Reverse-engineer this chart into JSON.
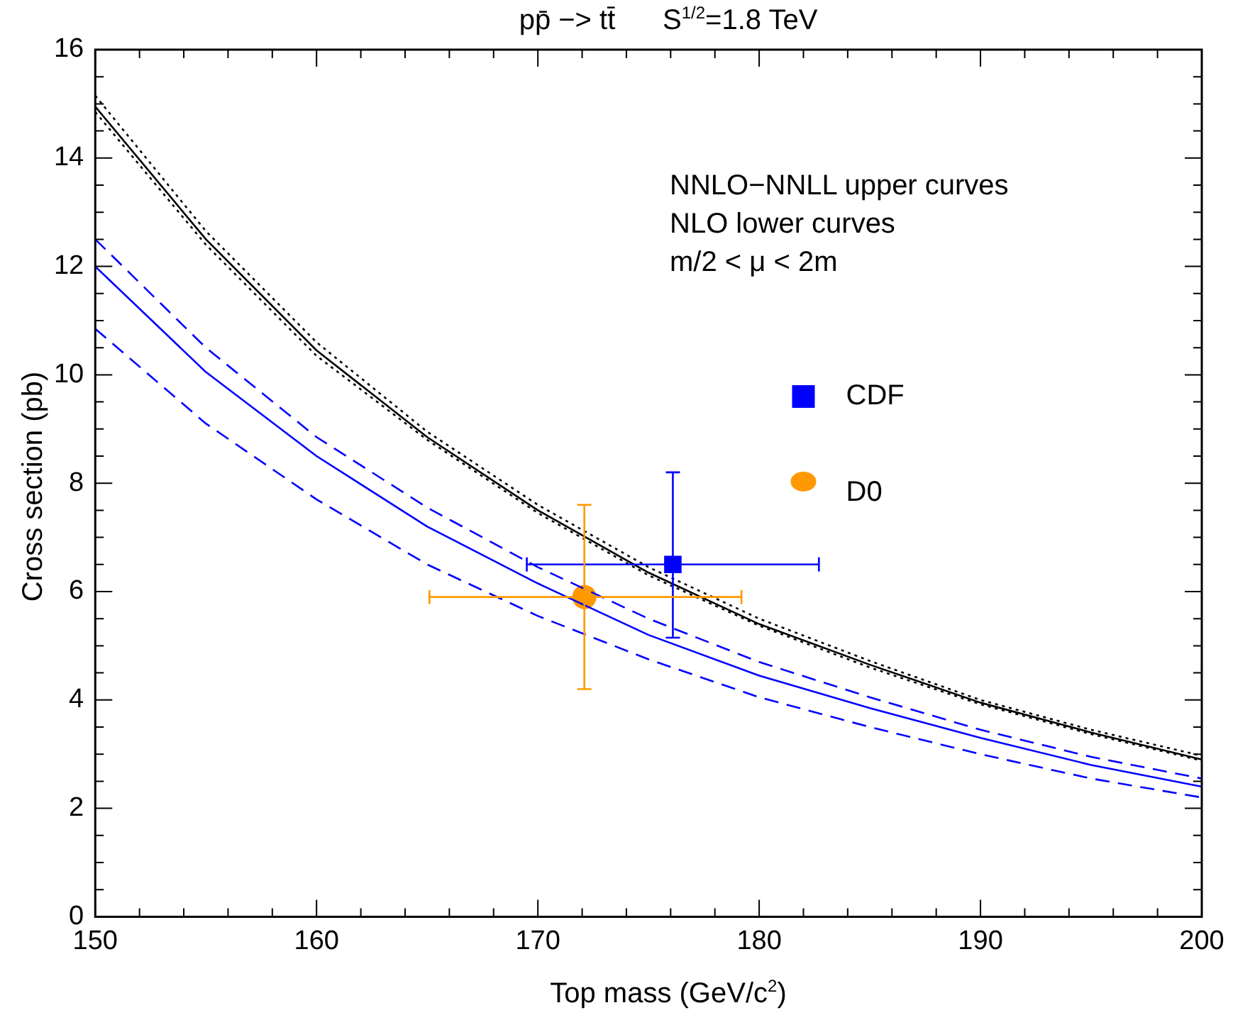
{
  "chart_data": {
    "type": "line",
    "title": "pp̄ −> tt̄      S$^{1/2}$=1.8 TeV",
    "xlabel": "Top mass (GeV/c$^{2}$)",
    "ylabel": "Cross section (pb)",
    "annotations": [
      "NNLO−NNLL upper curves",
      "NLO lower curves",
      "m/2 < μ < 2m"
    ],
    "x": [
      150,
      155,
      160,
      165,
      170,
      175,
      180,
      185,
      190,
      195,
      200
    ],
    "xlim": [
      150,
      200
    ],
    "ylim": [
      0,
      16
    ],
    "xticks": [
      150,
      {
        "value": 152,
        "label": null
      },
      {
        "value": 154,
        "label": null
      },
      {
        "value": 156,
        "label": null
      },
      {
        "value": 158,
        "label": null
      },
      160,
      {
        "value": 162,
        "label": null
      },
      {
        "value": 164,
        "label": null
      },
      {
        "value": 166,
        "label": null
      },
      {
        "value": 168,
        "label": null
      },
      170,
      {
        "value": 172,
        "label": null
      },
      {
        "value": 174,
        "label": null
      },
      {
        "value": 176,
        "label": null
      },
      {
        "value": 178,
        "label": null
      },
      180,
      {
        "value": 182,
        "label": null
      },
      {
        "value": 184,
        "label": null
      },
      {
        "value": 186,
        "label": null
      },
      {
        "value": 188,
        "label": null
      },
      190,
      {
        "value": 192,
        "label": null
      },
      {
        "value": 194,
        "label": null
      },
      {
        "value": 196,
        "label": null
      },
      {
        "value": 198,
        "label": null
      },
      200
    ],
    "yticks": [
      0,
      {
        "value": 0.5,
        "label": null
      },
      {
        "value": 1,
        "label": null
      },
      {
        "value": 1.5,
        "label": null
      },
      2,
      {
        "value": 2.5,
        "label": null
      },
      {
        "value": 3,
        "label": null
      },
      {
        "value": 3.5,
        "label": null
      },
      4,
      {
        "value": 4.5,
        "label": null
      },
      {
        "value": 5,
        "label": null
      },
      {
        "value": 5.5,
        "label": null
      },
      6,
      {
        "value": 6.5,
        "label": null
      },
      {
        "value": 7,
        "label": null
      },
      {
        "value": 7.5,
        "label": null
      },
      8,
      {
        "value": 8.5,
        "label": null
      },
      {
        "value": 9,
        "label": null
      },
      {
        "value": 9.5,
        "label": null
      },
      10,
      {
        "value": 10.5,
        "label": null
      },
      {
        "value": 11,
        "label": null
      },
      {
        "value": 11.5,
        "label": null
      },
      12,
      {
        "value": 12.5,
        "label": null
      },
      {
        "value": 13,
        "label": null
      },
      {
        "value": 13.5,
        "label": null
      },
      14,
      {
        "value": 14.5,
        "label": null
      },
      {
        "value": 15,
        "label": null
      },
      {
        "value": 15.5,
        "label": null
      },
      16
    ],
    "legend": "top right",
    "series": [
      {
        "color": "#000000",
        "line_style": "dotted",
        "values": [
          15.15,
          12.65,
          10.6,
          8.95,
          7.6,
          6.45,
          5.5,
          4.72,
          4.0,
          3.45,
          2.97
        ]
      },
      {
        "color": "#000000",
        "line_style": "solid",
        "values": [
          14.95,
          12.5,
          10.45,
          8.85,
          7.5,
          6.35,
          5.4,
          4.65,
          3.95,
          3.4,
          2.9
        ]
      },
      {
        "color": "#000000",
        "line_style": "dotted",
        "values": [
          14.85,
          12.4,
          10.35,
          8.8,
          7.45,
          6.3,
          5.37,
          4.6,
          3.92,
          3.37,
          2.88
        ]
      },
      {
        "color": "#0000ff",
        "line_style": "dashed",
        "values": [
          12.5,
          10.5,
          8.85,
          7.55,
          6.45,
          5.5,
          4.7,
          4.05,
          3.45,
          2.95,
          2.55
        ]
      },
      {
        "color": "#0000ff",
        "line_style": "solid",
        "values": [
          12.0,
          10.05,
          8.5,
          7.2,
          6.15,
          5.2,
          4.45,
          3.85,
          3.3,
          2.8,
          2.4
        ]
      },
      {
        "color": "#0000ff",
        "line_style": "dashed",
        "values": [
          10.85,
          9.1,
          7.7,
          6.5,
          5.55,
          4.75,
          4.05,
          3.5,
          3.0,
          2.55,
          2.2
        ]
      },
      {
        "type": "scatter",
        "name": "CDF",
        "color": "#0000ff",
        "marker": "square",
        "x": [
          176.1
        ],
        "values": [
          6.5
        ],
        "errors": [
          [
            5.15,
            8.2
          ]
        ],
        "xerrors": [
          [
            169.5,
            182.7
          ]
        ]
      },
      {
        "type": "scatter",
        "name": "D0",
        "color": "#ff9900",
        "marker": "circle",
        "x": [
          172.1
        ],
        "values": [
          5.9
        ],
        "errors": [
          [
            4.2,
            7.6
          ]
        ],
        "xerrors": [
          [
            165.1,
            179.2
          ]
        ]
      }
    ]
  }
}
